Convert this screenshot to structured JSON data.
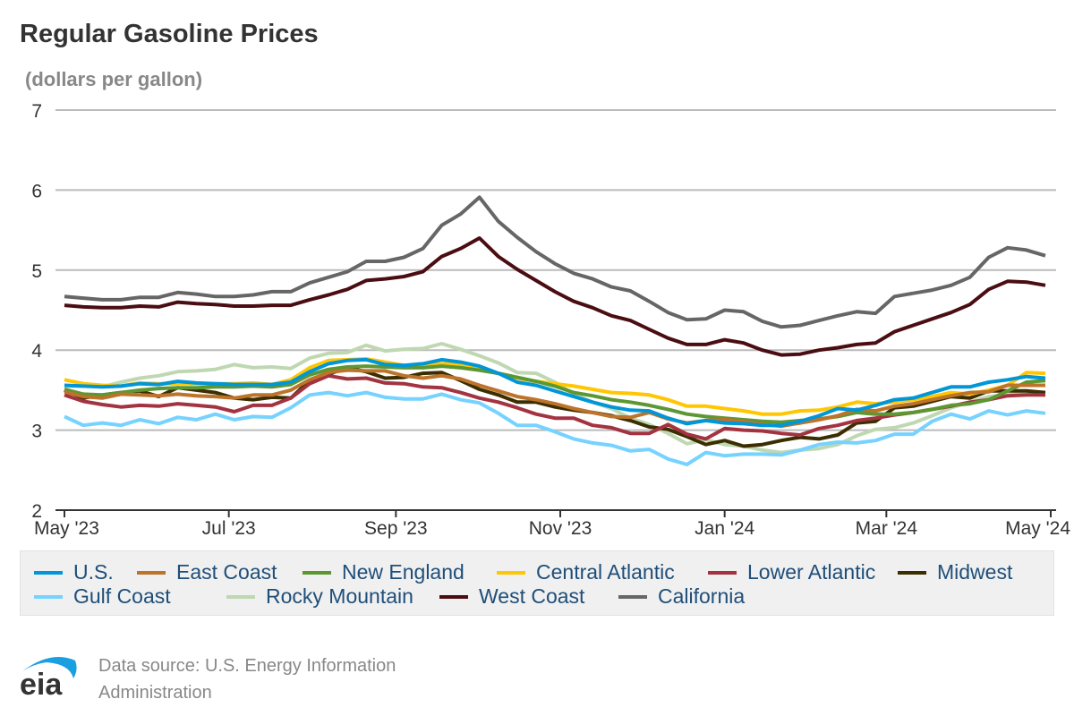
{
  "chart_data": {
    "type": "line",
    "title": "Regular Gasoline Prices",
    "ylabel": "(dollars per gallon)",
    "xlabel": "",
    "ylim": [
      2,
      7
    ],
    "yticks": [
      "2",
      "3",
      "4",
      "5",
      "6",
      "7"
    ],
    "xticks": [
      {
        "date": "2023-05-01",
        "label": "May '23"
      },
      {
        "date": "2023-07-01",
        "label": "Jul '23"
      },
      {
        "date": "2023-09-01",
        "label": "Sep '23"
      },
      {
        "date": "2023-11-01",
        "label": "Nov '23"
      },
      {
        "date": "2024-01-01",
        "label": "Jan '24"
      },
      {
        "date": "2024-03-01",
        "label": "Mar '24"
      },
      {
        "date": "2024-05-01",
        "label": "May '24"
      }
    ],
    "xlim": [
      "2023-05-01",
      "2024-05-01"
    ],
    "grid": true,
    "legend_placement": "bottom",
    "x": [
      "2023-05-01",
      "2023-05-08",
      "2023-05-15",
      "2023-05-22",
      "2023-05-29",
      "2023-06-05",
      "2023-06-12",
      "2023-06-19",
      "2023-06-26",
      "2023-07-03",
      "2023-07-10",
      "2023-07-17",
      "2023-07-24",
      "2023-07-31",
      "2023-08-07",
      "2023-08-14",
      "2023-08-21",
      "2023-08-28",
      "2023-09-04",
      "2023-09-11",
      "2023-09-18",
      "2023-09-25",
      "2023-10-02",
      "2023-10-09",
      "2023-10-16",
      "2023-10-23",
      "2023-10-30",
      "2023-11-06",
      "2023-11-13",
      "2023-11-20",
      "2023-11-27",
      "2023-12-04",
      "2023-12-11",
      "2023-12-18",
      "2023-12-25",
      "2024-01-01",
      "2024-01-08",
      "2024-01-15",
      "2024-01-22",
      "2024-01-29",
      "2024-02-05",
      "2024-02-12",
      "2024-02-19",
      "2024-02-26",
      "2024-03-04",
      "2024-03-11",
      "2024-03-18",
      "2024-03-25",
      "2024-04-01",
      "2024-04-08",
      "2024-04-15",
      "2024-04-22",
      "2024-04-29"
    ],
    "series": [
      {
        "name": "U.S.",
        "color": "#0096d7",
        "values": [
          3.56,
          3.55,
          3.54,
          3.55,
          3.58,
          3.57,
          3.61,
          3.59,
          3.58,
          3.57,
          3.57,
          3.57,
          3.6,
          3.73,
          3.83,
          3.87,
          3.88,
          3.82,
          3.81,
          3.83,
          3.88,
          3.85,
          3.8,
          3.71,
          3.6,
          3.56,
          3.49,
          3.42,
          3.35,
          3.29,
          3.25,
          3.24,
          3.15,
          3.08,
          3.12,
          3.09,
          3.08,
          3.06,
          3.06,
          3.11,
          3.18,
          3.27,
          3.25,
          3.31,
          3.38,
          3.4,
          3.47,
          3.54,
          3.54,
          3.6,
          3.63,
          3.67,
          3.65
        ]
      },
      {
        "name": "East Coast",
        "color": "#bd732a",
        "values": [
          3.48,
          3.42,
          3.4,
          3.45,
          3.44,
          3.43,
          3.45,
          3.43,
          3.42,
          3.4,
          3.44,
          3.44,
          3.5,
          3.63,
          3.72,
          3.75,
          3.74,
          3.74,
          3.68,
          3.65,
          3.68,
          3.64,
          3.56,
          3.49,
          3.42,
          3.38,
          3.33,
          3.27,
          3.22,
          3.17,
          3.16,
          3.22,
          3.14,
          3.09,
          3.12,
          3.13,
          3.11,
          3.07,
          3.05,
          3.09,
          3.13,
          3.18,
          3.26,
          3.24,
          3.3,
          3.33,
          3.38,
          3.43,
          3.47,
          3.48,
          3.56,
          3.56,
          3.56
        ]
      },
      {
        "name": "New England",
        "color": "#5d9732",
        "values": [
          3.51,
          3.45,
          3.44,
          3.47,
          3.5,
          3.52,
          3.53,
          3.53,
          3.54,
          3.54,
          3.55,
          3.54,
          3.57,
          3.69,
          3.76,
          3.79,
          3.8,
          3.79,
          3.78,
          3.78,
          3.8,
          3.78,
          3.75,
          3.71,
          3.66,
          3.61,
          3.55,
          3.47,
          3.43,
          3.38,
          3.35,
          3.31,
          3.26,
          3.2,
          3.17,
          3.15,
          3.13,
          3.11,
          3.1,
          3.12,
          3.14,
          3.17,
          3.22,
          3.2,
          3.2,
          3.22,
          3.26,
          3.31,
          3.33,
          3.38,
          3.49,
          3.6,
          3.62
        ]
      },
      {
        "name": "Central Atlantic",
        "color": "#ffc702",
        "values": [
          3.63,
          3.58,
          3.56,
          3.55,
          3.59,
          3.58,
          3.58,
          3.58,
          3.58,
          3.58,
          3.59,
          3.57,
          3.63,
          3.78,
          3.87,
          3.88,
          3.89,
          3.85,
          3.81,
          3.8,
          3.83,
          3.82,
          3.76,
          3.71,
          3.65,
          3.61,
          3.58,
          3.55,
          3.51,
          3.47,
          3.46,
          3.44,
          3.38,
          3.3,
          3.3,
          3.27,
          3.24,
          3.2,
          3.2,
          3.24,
          3.25,
          3.29,
          3.35,
          3.33,
          3.35,
          3.38,
          3.42,
          3.47,
          3.45,
          3.5,
          3.56,
          3.72,
          3.71
        ]
      },
      {
        "name": "Lower Atlantic",
        "color": "#a33340",
        "values": [
          3.44,
          3.36,
          3.32,
          3.29,
          3.31,
          3.3,
          3.33,
          3.31,
          3.29,
          3.23,
          3.31,
          3.31,
          3.4,
          3.58,
          3.68,
          3.64,
          3.65,
          3.59,
          3.58,
          3.54,
          3.53,
          3.47,
          3.4,
          3.35,
          3.28,
          3.2,
          3.15,
          3.15,
          3.06,
          3.03,
          2.96,
          2.96,
          3.07,
          2.95,
          2.89,
          3.02,
          3.0,
          2.99,
          2.96,
          2.94,
          3.02,
          3.06,
          3.12,
          3.15,
          3.19,
          3.22,
          3.26,
          3.3,
          3.35,
          3.38,
          3.43,
          3.44,
          3.44
        ]
      },
      {
        "name": "Midwest",
        "color": "#3b2e00",
        "values": [
          3.5,
          3.4,
          3.44,
          3.47,
          3.49,
          3.42,
          3.53,
          3.5,
          3.47,
          3.4,
          3.38,
          3.41,
          3.4,
          3.62,
          3.7,
          3.78,
          3.73,
          3.65,
          3.66,
          3.71,
          3.72,
          3.62,
          3.51,
          3.44,
          3.35,
          3.35,
          3.29,
          3.25,
          3.22,
          3.18,
          3.12,
          3.04,
          3.01,
          2.92,
          2.82,
          2.87,
          2.8,
          2.82,
          2.87,
          2.91,
          2.89,
          2.94,
          3.09,
          3.11,
          3.28,
          3.3,
          3.36,
          3.42,
          3.4,
          3.49,
          3.49,
          3.49,
          3.47
        ]
      },
      {
        "name": "Gulf Coast",
        "color": "#76d2ff",
        "values": [
          3.17,
          3.06,
          3.09,
          3.06,
          3.13,
          3.08,
          3.16,
          3.13,
          3.2,
          3.13,
          3.17,
          3.16,
          3.28,
          3.44,
          3.47,
          3.43,
          3.47,
          3.41,
          3.39,
          3.39,
          3.45,
          3.38,
          3.34,
          3.21,
          3.06,
          3.06,
          2.98,
          2.89,
          2.84,
          2.81,
          2.74,
          2.76,
          2.64,
          2.57,
          2.72,
          2.68,
          2.7,
          2.7,
          2.69,
          2.75,
          2.82,
          2.85,
          2.84,
          2.87,
          2.95,
          2.95,
          3.11,
          3.2,
          3.14,
          3.24,
          3.19,
          3.24,
          3.21
        ]
      },
      {
        "name": "Rocky Mountain",
        "color": "#bfd8b2",
        "values": [
          3.55,
          3.55,
          3.54,
          3.6,
          3.65,
          3.68,
          3.73,
          3.74,
          3.76,
          3.82,
          3.78,
          3.79,
          3.77,
          3.9,
          3.96,
          3.97,
          4.06,
          3.99,
          4.01,
          4.02,
          4.08,
          4.01,
          3.93,
          3.84,
          3.72,
          3.71,
          3.6,
          3.45,
          3.35,
          3.27,
          3.15,
          3.07,
          2.96,
          2.83,
          2.88,
          2.82,
          2.8,
          2.75,
          2.72,
          2.75,
          2.77,
          2.82,
          2.93,
          3.01,
          3.03,
          3.09,
          3.18,
          3.28,
          3.35,
          3.42,
          3.44,
          3.47,
          3.45
        ]
      },
      {
        "name": "West Coast",
        "color": "#4a0d12",
        "values": [
          4.56,
          4.54,
          4.53,
          4.53,
          4.55,
          4.54,
          4.6,
          4.58,
          4.57,
          4.55,
          4.55,
          4.56,
          4.56,
          4.63,
          4.69,
          4.76,
          4.87,
          4.89,
          4.92,
          4.98,
          5.17,
          5.27,
          5.4,
          5.17,
          5.01,
          4.87,
          4.73,
          4.61,
          4.53,
          4.43,
          4.37,
          4.26,
          4.15,
          4.07,
          4.07,
          4.13,
          4.09,
          4.0,
          3.94,
          3.95,
          4.0,
          4.03,
          4.07,
          4.09,
          4.23,
          4.31,
          4.39,
          4.47,
          4.57,
          4.76,
          4.86,
          4.85,
          4.81
        ]
      },
      {
        "name": "California",
        "color": "#666666",
        "values": [
          4.67,
          4.65,
          4.63,
          4.63,
          4.66,
          4.66,
          4.72,
          4.7,
          4.67,
          4.67,
          4.69,
          4.73,
          4.73,
          4.84,
          4.91,
          4.98,
          5.11,
          5.11,
          5.16,
          5.27,
          5.56,
          5.7,
          5.91,
          5.61,
          5.41,
          5.23,
          5.08,
          4.96,
          4.89,
          4.79,
          4.74,
          4.61,
          4.47,
          4.38,
          4.39,
          4.5,
          4.48,
          4.36,
          4.29,
          4.31,
          4.37,
          4.43,
          4.48,
          4.46,
          4.67,
          4.71,
          4.75,
          4.81,
          4.91,
          5.16,
          5.28,
          5.25,
          5.18
        ]
      }
    ]
  },
  "footer": {
    "source": "Data source: U.S. Energy Information Administration",
    "logo_text": "eia"
  }
}
